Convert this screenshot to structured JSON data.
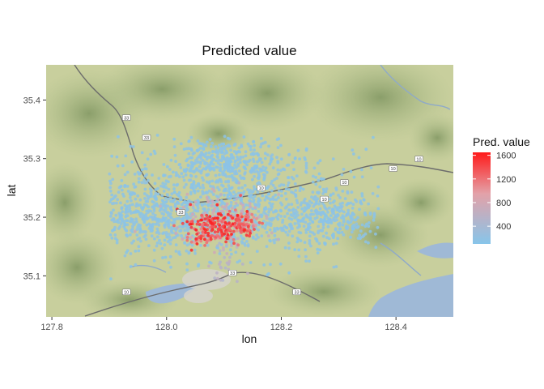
{
  "chart_data": {
    "type": "scatter",
    "title": "Predicted value",
    "xlabel": "lon",
    "ylabel": "lat",
    "xlim": [
      127.79,
      128.5
    ],
    "ylim": [
      35.03,
      35.46
    ],
    "xticks": [
      {
        "value": 127.8,
        "label": "127.8"
      },
      {
        "value": 128.0,
        "label": "128.0"
      },
      {
        "value": 128.2,
        "label": "128.2"
      },
      {
        "value": 128.4,
        "label": "128.4"
      }
    ],
    "yticks": [
      {
        "value": 35.1,
        "label": "35.1"
      },
      {
        "value": 35.2,
        "label": "35.2"
      },
      {
        "value": 35.3,
        "label": "35.3"
      },
      {
        "value": 35.4,
        "label": "35.4"
      }
    ],
    "background": "terrain map tiles",
    "legend": {
      "title": "Pred. value",
      "position": "right",
      "range": [
        100,
        1650
      ],
      "ticks": [
        {
          "value": 400,
          "label": "400"
        },
        {
          "value": 800,
          "label": "800"
        },
        {
          "value": 1200,
          "label": "1200"
        },
        {
          "value": 1600,
          "label": "1600"
        }
      ],
      "low_color": "#87c5ea",
      "high_color": "#ff1a1a"
    },
    "clusters": [
      {
        "lon": 128.09,
        "lat": 35.185,
        "sd_lon": 0.028,
        "sd_lat": 0.014,
        "count": 160,
        "value": 1450
      },
      {
        "lon": 128.13,
        "lat": 35.19,
        "sd_lon": 0.015,
        "sd_lat": 0.012,
        "count": 60,
        "value": 1250
      },
      {
        "lon": 128.07,
        "lat": 35.17,
        "sd_lon": 0.02,
        "sd_lat": 0.01,
        "count": 40,
        "value": 1100
      },
      {
        "lon": 128.1,
        "lat": 35.2,
        "sd_lon": 0.04,
        "sd_lat": 0.025,
        "count": 120,
        "value": 700
      },
      {
        "lon": 128.1,
        "lat": 35.12,
        "sd_lon": 0.015,
        "sd_lat": 0.02,
        "count": 30,
        "value": 550
      },
      {
        "lon": 128.1,
        "lat": 35.23,
        "sd_lon": 0.11,
        "sd_lat": 0.05,
        "count": 1100,
        "value": 150
      },
      {
        "lon": 128.28,
        "lat": 35.2,
        "sd_lon": 0.05,
        "sd_lat": 0.025,
        "count": 320,
        "value": 150
      },
      {
        "lon": 127.97,
        "lat": 35.2,
        "sd_lon": 0.05,
        "sd_lat": 0.025,
        "count": 300,
        "value": 150
      },
      {
        "lon": 128.1,
        "lat": 35.3,
        "sd_lon": 0.035,
        "sd_lat": 0.018,
        "count": 200,
        "value": 150
      }
    ],
    "map_labels": [
      {
        "text": "33",
        "lon": 128.025,
        "lat": 35.2085
      },
      {
        "text": "33",
        "lon": 127.93,
        "lat": 35.37
      },
      {
        "text": "33",
        "lon": 127.965,
        "lat": 35.336
      },
      {
        "text": "10",
        "lon": 128.165,
        "lat": 35.25
      },
      {
        "text": "10",
        "lon": 128.275,
        "lat": 35.231
      },
      {
        "text": "10",
        "lon": 128.31,
        "lat": 35.2595
      },
      {
        "text": "10",
        "lon": 128.395,
        "lat": 35.283
      },
      {
        "text": "10",
        "lon": 128.44,
        "lat": 35.2995
      },
      {
        "text": "10",
        "lon": 127.93,
        "lat": 35.0725
      },
      {
        "text": "33",
        "lon": 128.115,
        "lat": 35.105
      },
      {
        "text": "33",
        "lon": 128.227,
        "lat": 35.0725
      }
    ]
  }
}
